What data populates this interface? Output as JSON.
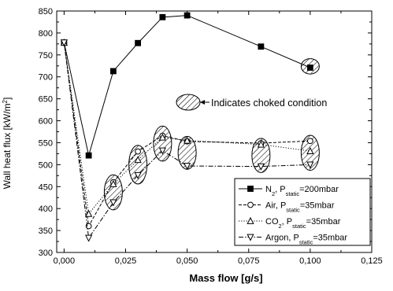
{
  "chart_data": {
    "type": "line",
    "title": "",
    "xlabel": "Mass flow [g/s]",
    "ylabel": "Wall heat flux [kW/m²]",
    "ylabel_parts": {
      "main": "Wall heat flux [kW/m",
      "sup": "2",
      "end": "]"
    },
    "xlim": [
      -0.003,
      0.125
    ],
    "ylim": [
      300,
      850
    ],
    "xticks": [
      0.0,
      0.025,
      0.05,
      0.075,
      0.1,
      0.125
    ],
    "xtick_labels": [
      "0,000",
      "0,025",
      "0,050",
      "0,075",
      "0,100",
      "0,125"
    ],
    "yticks": [
      300,
      350,
      400,
      450,
      500,
      550,
      600,
      650,
      700,
      750,
      800,
      850
    ],
    "ytick_labels": [
      "300",
      "350",
      "400",
      "450",
      "500",
      "550",
      "600",
      "650",
      "700",
      "750",
      "800",
      "850"
    ],
    "grid": false,
    "legend_position": "bottom-right",
    "series": [
      {
        "name": "N2, Pstatic=200mbar",
        "legend": {
          "a": "N",
          "a_sub": "2",
          "b": ", P",
          "b_sub": "static",
          "c": "=200mbar"
        },
        "marker": "filled-square",
        "line": "solid",
        "x": [
          0.0,
          0.01,
          0.02,
          0.03,
          0.04,
          0.05,
          0.08,
          0.1
        ],
        "y": [
          778,
          521,
          713,
          777,
          836,
          840,
          769,
          721
        ]
      },
      {
        "name": "Air, Pstatic=35mbar",
        "legend": {
          "a": "Air, P",
          "a_sub": "static",
          "b": "=35mbar",
          "b_sub": "",
          "c": ""
        },
        "marker": "open-circle",
        "line": "dashed",
        "x": [
          0.0,
          0.01,
          0.02,
          0.03,
          0.04,
          0.05,
          0.08,
          0.1
        ],
        "y": [
          778,
          360,
          460,
          530,
          566,
          553,
          549,
          554
        ]
      },
      {
        "name": "CO2, Pstatic=35mbar",
        "legend": {
          "a": "CO",
          "a_sub": "2",
          "b": ", P",
          "b_sub": "static",
          "c": "=35mbar"
        },
        "marker": "open-triangle-up",
        "line": "dotted",
        "x": [
          0.0,
          0.01,
          0.02,
          0.03,
          0.04,
          0.05,
          0.08,
          0.1
        ],
        "y": [
          778,
          388,
          456,
          511,
          562,
          555,
          546,
          531
        ]
      },
      {
        "name": "Argon, Pstatic=35mbar",
        "legend": {
          "a": "Argon, P",
          "a_sub": "static",
          "b": "=35mbar",
          "b_sub": "",
          "c": ""
        },
        "marker": "open-triangle-down",
        "line": "dashdot",
        "x": [
          0.0,
          0.01,
          0.02,
          0.03,
          0.04,
          0.05,
          0.08,
          0.1
        ],
        "y": [
          778,
          333,
          414,
          476,
          532,
          497,
          496,
          500
        ]
      }
    ],
    "choked_regions": [
      {
        "x": 0.02,
        "y_center": 437,
        "y_span": 80
      },
      {
        "x": 0.03,
        "y_center": 500,
        "y_span": 88
      },
      {
        "x": 0.04,
        "y_center": 548,
        "y_span": 80
      },
      {
        "x": 0.05,
        "y_center": 527,
        "y_span": 75
      },
      {
        "x": 0.08,
        "y_center": 521,
        "y_span": 78
      },
      {
        "x": 0.1,
        "y_center": 527,
        "y_span": 80
      },
      {
        "x": 0.1,
        "y_center": 724,
        "y_span": 35
      }
    ],
    "annotation": {
      "text": "Indicates choked condition"
    }
  }
}
